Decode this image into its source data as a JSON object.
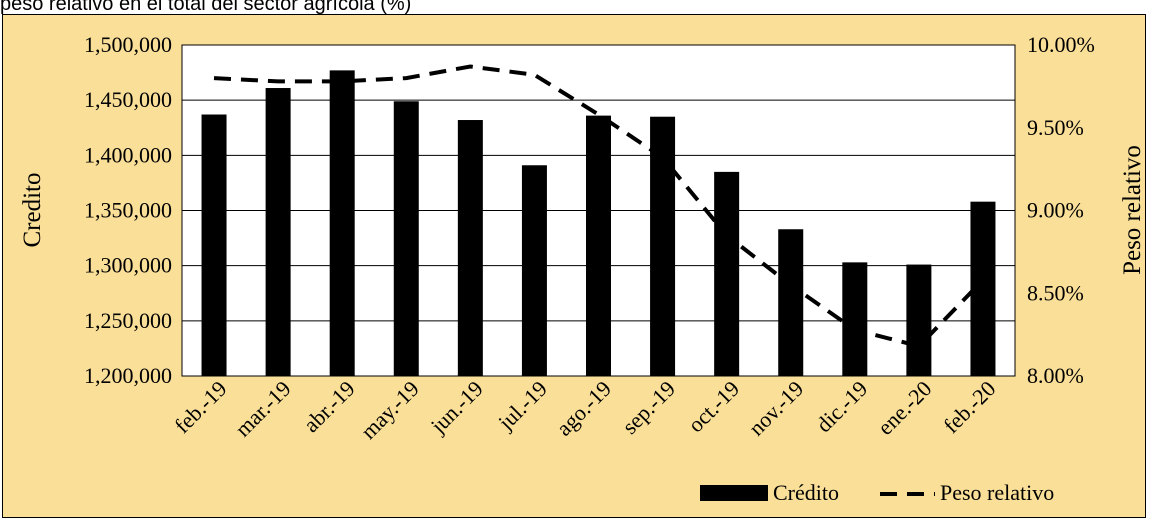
{
  "caption": "peso relativo en el total del sector agrícola (%)",
  "chart_data": {
    "type": "bar",
    "categories": [
      "feb.-19",
      "mar.-19",
      "abr.-19",
      "may.-19",
      "jun.-19",
      "jul.-19",
      "ago.-19",
      "sep.-19",
      "oct.-19",
      "nov.-19",
      "dic.-19",
      "ene.-20",
      "feb.-20"
    ],
    "series": [
      {
        "name": "Crédito",
        "type": "bar",
        "axis": "left",
        "values": [
          1437000,
          1461000,
          1477000,
          1449000,
          1432000,
          1391000,
          1436000,
          1435000,
          1385000,
          1333000,
          1303000,
          1301000,
          1358000
        ]
      },
      {
        "name": "Peso relativo",
        "type": "line",
        "style": "dashed",
        "axis": "right",
        "values": [
          9.8,
          9.78,
          9.78,
          9.8,
          9.87,
          9.82,
          9.58,
          9.32,
          8.85,
          8.55,
          8.28,
          8.18,
          8.58
        ]
      }
    ],
    "ylabel": "Credito",
    "y2label": "Peso relativo",
    "ylim": [
      1200000,
      1500000
    ],
    "y2lim": [
      8.0,
      10.0
    ],
    "yticks": [
      "1,200,000",
      "1,250,000",
      "1,300,000",
      "1,350,000",
      "1,400,000",
      "1,450,000",
      "1,500,000"
    ],
    "y2ticks": [
      "8.00%",
      "8.50%",
      "9.00%",
      "9.50%",
      "10.00%"
    ],
    "grid": true,
    "legend_position": "bottom-right",
    "colors": {
      "bars": "#000000",
      "line": "#000000",
      "frame_bg": "#fadf98",
      "plot_bg": "#ffffff"
    }
  }
}
